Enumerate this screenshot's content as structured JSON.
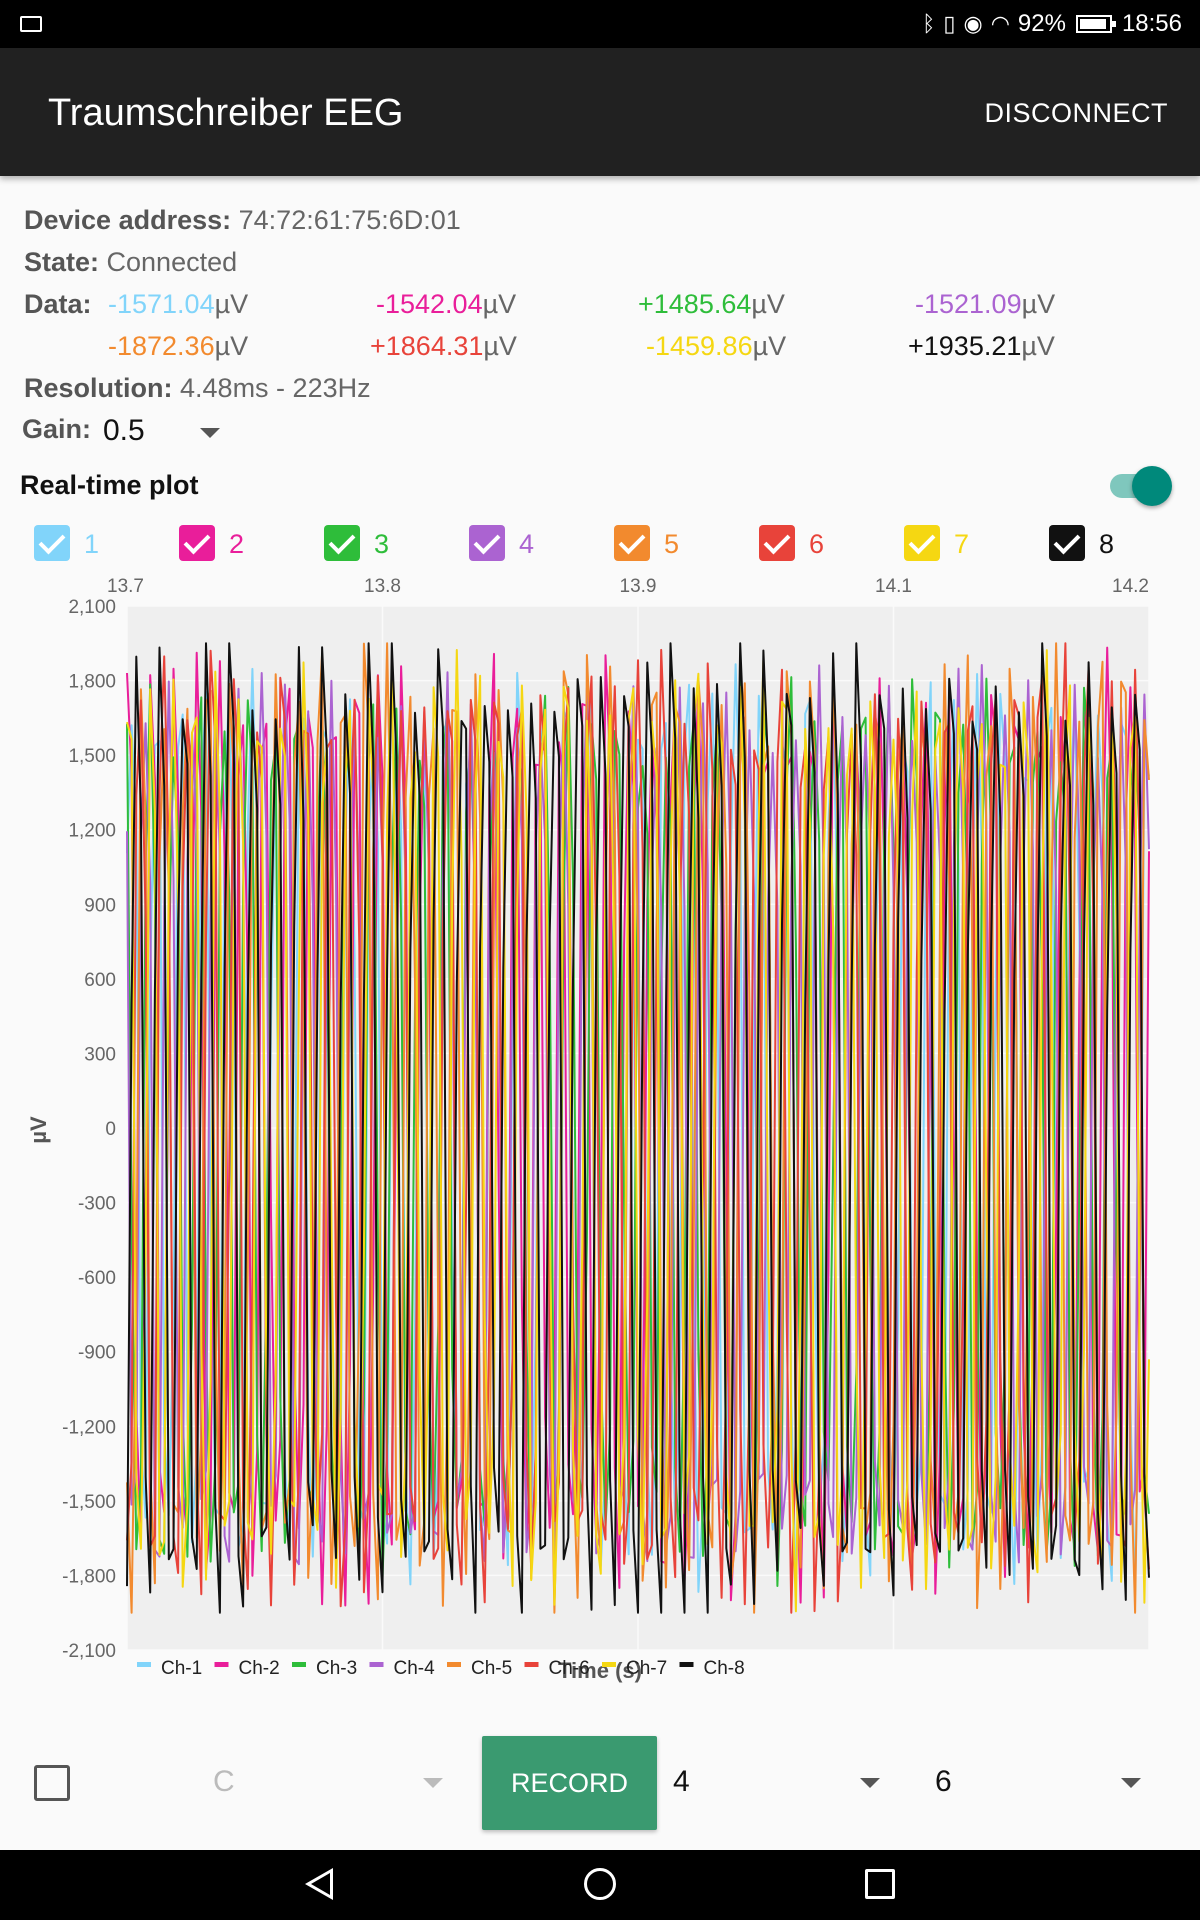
{
  "status_bar": {
    "battery": "92%",
    "time": "18:56",
    "icons": [
      "notification-icon",
      "bluetooth-icon",
      "vibrate-icon",
      "eye-icon",
      "wifi-icon",
      "battery-icon"
    ]
  },
  "app_bar": {
    "title": "Traumschreiber EEG",
    "action": "DISCONNECT"
  },
  "info": {
    "device_label": "Device address:",
    "device_value": "74:72:61:75:6D:01",
    "state_label": "State:",
    "state_value": "Connected",
    "data_label": "Data:",
    "unit": "µV",
    "channels": [
      {
        "value": "-1571.04",
        "color": "#81d4fa"
      },
      {
        "value": "-1542.04",
        "color": "#e91e9a"
      },
      {
        "value": "+1485.64",
        "color": "#2ebd3a"
      },
      {
        "value": "-1521.09",
        "color": "#ab63d1"
      },
      {
        "value": "-1872.36",
        "color": "#f28a2e"
      },
      {
        "value": "+1864.31",
        "color": "#e8433a"
      },
      {
        "value": "-1459.86",
        "color": "#f5d712"
      },
      {
        "value": "+1935.21",
        "color": "#111111"
      }
    ],
    "resolution_label": "Resolution:",
    "resolution_value": "4.48ms - 223Hz",
    "gain_label": "Gain:",
    "gain_value": "0.5"
  },
  "realtime": {
    "label": "Real-time plot",
    "enabled": true
  },
  "channel_toggles": [
    {
      "label": "1",
      "color": "#81d4fa",
      "checked": true
    },
    {
      "label": "2",
      "color": "#e91e9a",
      "checked": true
    },
    {
      "label": "3",
      "color": "#2ebd3a",
      "checked": true
    },
    {
      "label": "4",
      "color": "#ab63d1",
      "checked": true
    },
    {
      "label": "5",
      "color": "#f28a2e",
      "checked": true
    },
    {
      "label": "6",
      "color": "#e8433a",
      "checked": true
    },
    {
      "label": "7",
      "color": "#f5d712",
      "checked": true
    },
    {
      "label": "8",
      "color": "#111111",
      "checked": true
    }
  ],
  "chart_data": {
    "type": "line",
    "xlabel": "Time (s)",
    "ylabel": "µV",
    "x_ticks": [
      "13.7",
      "13.8",
      "13.9",
      "14.1",
      "14.2"
    ],
    "y_ticks": [
      "2,100",
      "1,800",
      "1,500",
      "1,200",
      "900",
      "600",
      "300",
      "0",
      "-300",
      "-600",
      "-900",
      "-1,200",
      "-1,500",
      "-1,800",
      "-2,100"
    ],
    "ylim": [
      -2100,
      2100
    ],
    "grid": true,
    "legend_position": "bottom-left",
    "series": [
      {
        "name": "Ch-1",
        "color": "#81d4fa",
        "amplitude": 1700,
        "period": 5.2,
        "phase": 0.3
      },
      {
        "name": "Ch-2",
        "color": "#e91e9a",
        "amplitude": 1750,
        "period": 4.9,
        "phase": 1.1
      },
      {
        "name": "Ch-3",
        "color": "#2ebd3a",
        "amplitude": 1650,
        "period": 5.3,
        "phase": 2.0
      },
      {
        "name": "Ch-4",
        "color": "#ab63d1",
        "amplitude": 1680,
        "period": 5.0,
        "phase": 2.8
      },
      {
        "name": "Ch-5",
        "color": "#f28a2e",
        "amplitude": 1800,
        "period": 4.8,
        "phase": 3.6
      },
      {
        "name": "Ch-6",
        "color": "#e8433a",
        "amplitude": 1780,
        "period": 5.1,
        "phase": 4.3
      },
      {
        "name": "Ch-7",
        "color": "#f5d712",
        "amplitude": 1760,
        "period": 4.7,
        "phase": 0.9
      },
      {
        "name": "Ch-8",
        "color": "#111111",
        "amplitude": 1850,
        "period": 5.0,
        "phase": 5.1
      }
    ]
  },
  "controls": {
    "spinner1_value": "C",
    "record_label": "RECORD",
    "spinner2_value": "4",
    "spinner3_value": "6"
  }
}
